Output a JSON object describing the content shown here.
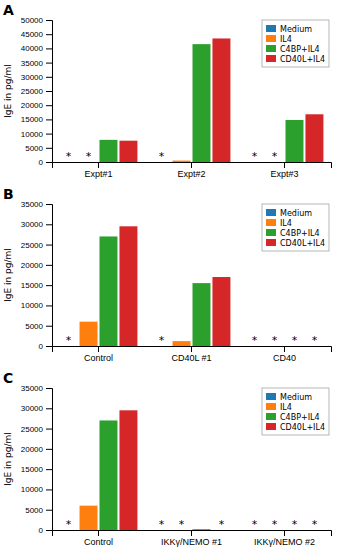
{
  "chart_data": [
    {
      "type": "bar",
      "title": "A",
      "ylabel": "IgE in pg/ml",
      "categories": [
        "Expt#1",
        "Expt#2",
        "Expt#3"
      ],
      "series": [
        {
          "name": "Medium",
          "values": [
            0,
            0,
            0
          ],
          "annotations": [
            "*",
            "*",
            "*"
          ]
        },
        {
          "name": "IL4",
          "values": [
            0,
            500,
            0
          ],
          "annotations": [
            "*",
            null,
            "*"
          ]
        },
        {
          "name": "C4BP+IL4",
          "values": [
            7800,
            41500,
            14800
          ],
          "annotations": [
            null,
            null,
            null
          ]
        },
        {
          "name": "CD40L+IL4",
          "values": [
            7500,
            43500,
            16800
          ],
          "annotations": [
            null,
            null,
            null
          ]
        }
      ],
      "ylim": [
        0,
        50000
      ],
      "yticks": [
        0,
        5000,
        10000,
        15000,
        20000,
        25000,
        30000,
        35000,
        40000,
        45000,
        50000
      ],
      "grid": false,
      "legend": "upper right"
    },
    {
      "type": "bar",
      "title": "B",
      "ylabel": "IgE in pg/ml",
      "categories": [
        "Control",
        "CD40L #1",
        "CD40"
      ],
      "series": [
        {
          "name": "Medium",
          "values": [
            0,
            0,
            0
          ],
          "annotations": [
            "*",
            "*",
            "*"
          ]
        },
        {
          "name": "IL4",
          "values": [
            6000,
            1200,
            0
          ],
          "annotations": [
            null,
            null,
            "*"
          ]
        },
        {
          "name": "C4BP+IL4",
          "values": [
            27000,
            15500,
            0
          ],
          "annotations": [
            null,
            null,
            "*"
          ]
        },
        {
          "name": "CD40L+IL4",
          "values": [
            29500,
            17000,
            0
          ],
          "annotations": [
            null,
            null,
            "*"
          ]
        }
      ],
      "ylim": [
        0,
        35000
      ],
      "yticks": [
        0,
        5000,
        10000,
        15000,
        20000,
        25000,
        30000,
        35000
      ],
      "grid": false,
      "legend": "upper right"
    },
    {
      "type": "bar",
      "title": "C",
      "ylabel": "IgE in pg/ml",
      "categories": [
        "Control",
        "IKKγ/NEMO #1",
        "IKKγ/NEMO #2"
      ],
      "series": [
        {
          "name": "Medium",
          "values": [
            0,
            0,
            0
          ],
          "annotations": [
            "*",
            "*",
            "*"
          ]
        },
        {
          "name": "IL4",
          "values": [
            6000,
            0,
            0
          ],
          "annotations": [
            null,
            "*",
            "*"
          ]
        },
        {
          "name": "C4BP+IL4",
          "values": [
            27000,
            200,
            0
          ],
          "annotations": [
            null,
            null,
            "*"
          ]
        },
        {
          "name": "CD40L+IL4",
          "values": [
            29500,
            0,
            0
          ],
          "annotations": [
            null,
            "*",
            "*"
          ]
        }
      ],
      "ylim": [
        0,
        35000
      ],
      "yticks": [
        0,
        5000,
        10000,
        15000,
        20000,
        25000,
        30000,
        35000
      ],
      "grid": false,
      "legend": "upper right"
    }
  ]
}
